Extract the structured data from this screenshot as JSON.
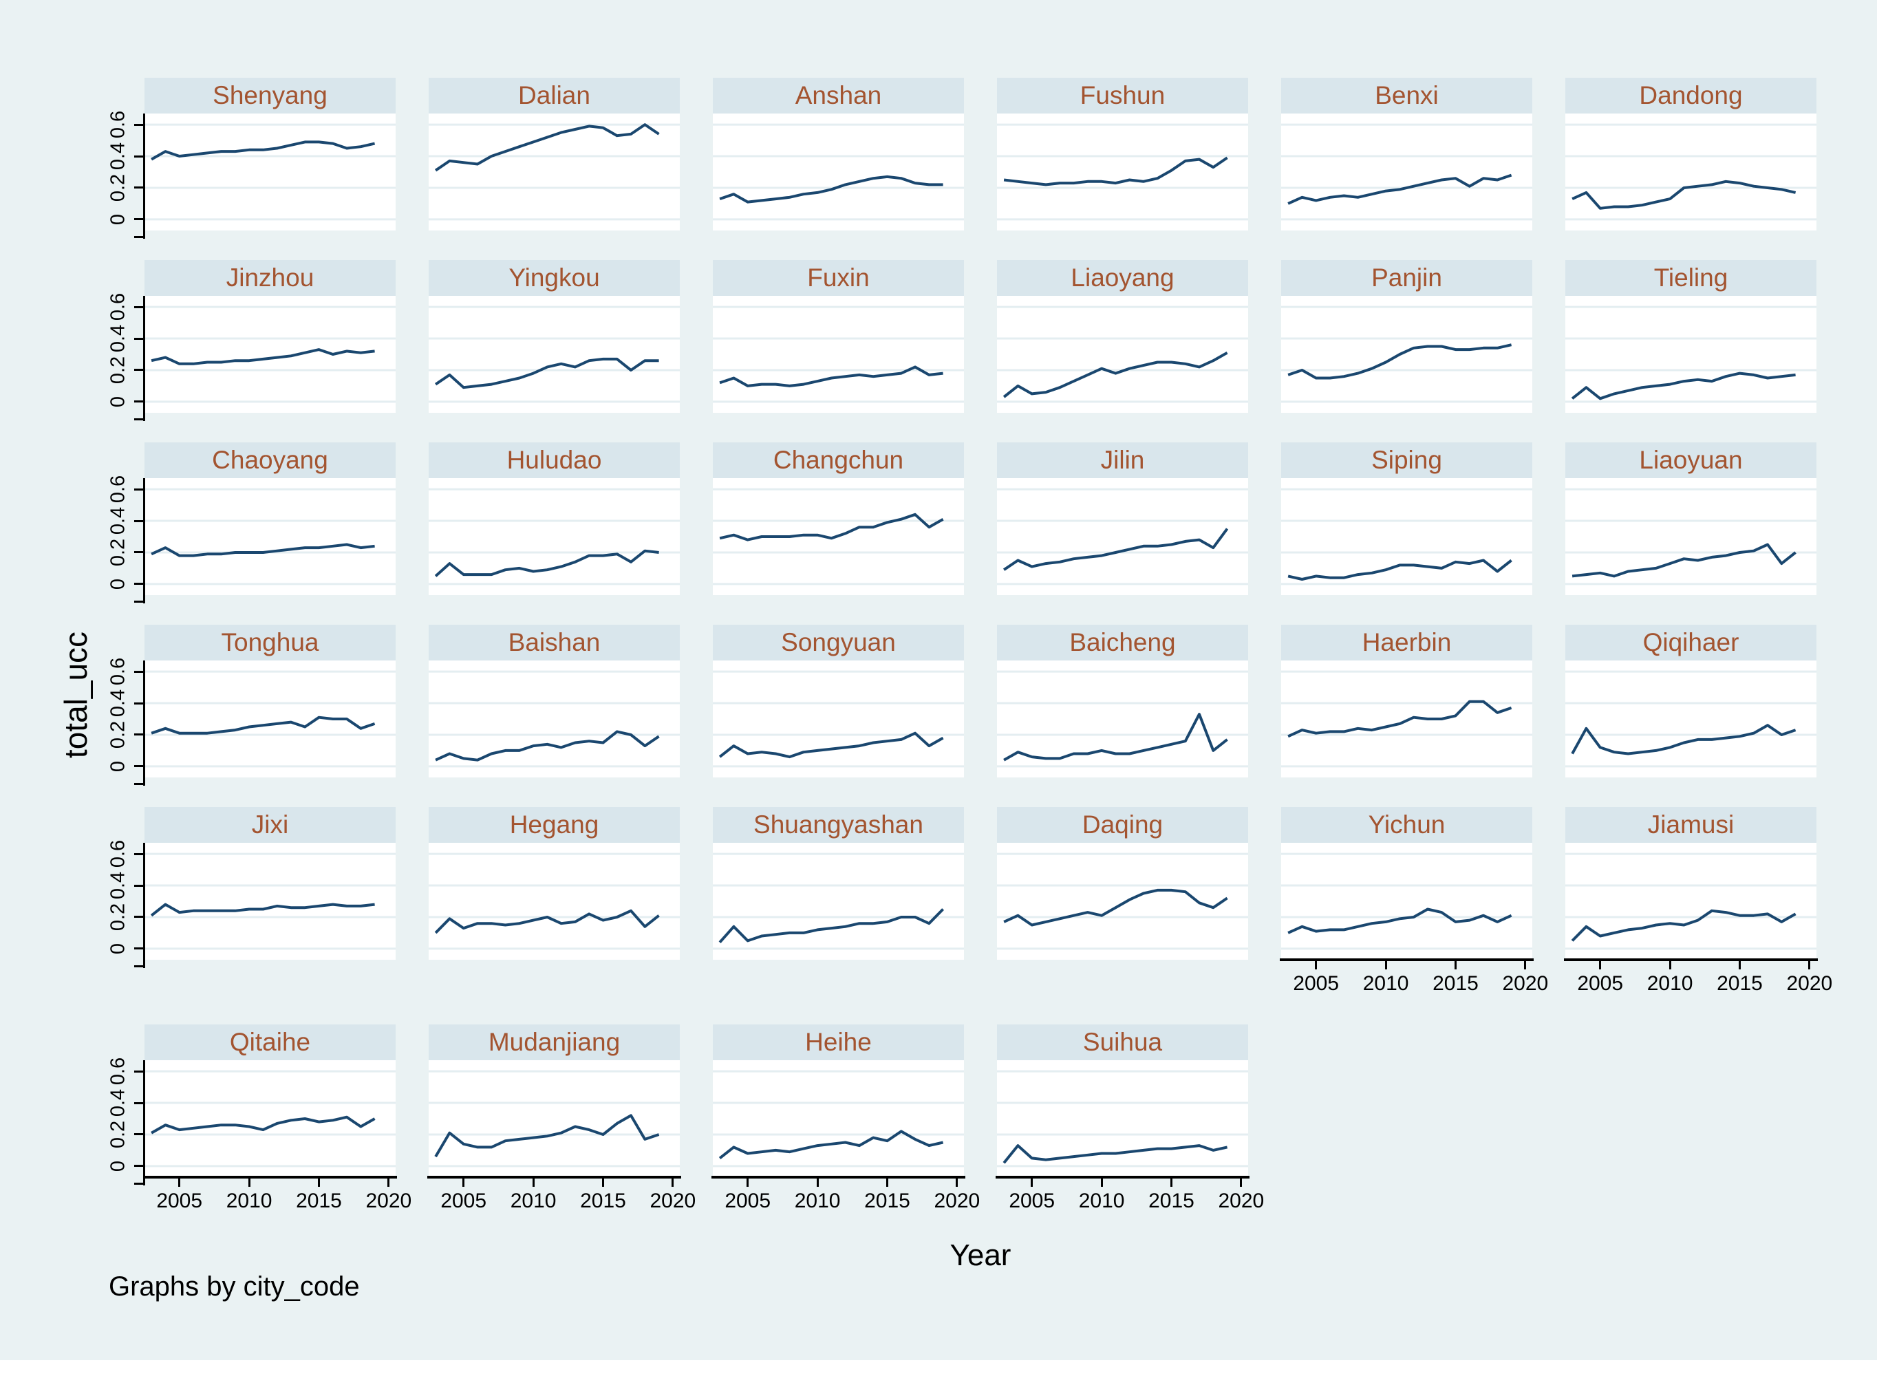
{
  "figure": {
    "ylabel": "total_ucc",
    "xlabel": "Year",
    "caption": "Graphs by city_code",
    "colors": {
      "background": "#eaf2f3",
      "title_band": "#d9e6ec",
      "title_text": "#a35430",
      "plot_background": "#ffffff",
      "gridline": "#e4eef1",
      "line": "#1a476f",
      "axis": "#000000"
    }
  },
  "chart_data": {
    "type": "line",
    "layout": "small-multiples, 6 columns, by city_code",
    "title": "",
    "xlabel": "Year",
    "ylabel": "total_ucc",
    "x": [
      2003,
      2004,
      2005,
      2006,
      2007,
      2008,
      2009,
      2010,
      2011,
      2012,
      2013,
      2014,
      2015,
      2016,
      2017,
      2018,
      2019
    ],
    "xticks": [
      2005,
      2010,
      2015,
      2020
    ],
    "xtick_labels": [
      "2005",
      "2010",
      "2015",
      "2020"
    ],
    "yticks": [
      0,
      0.2,
      0.4,
      0.6
    ],
    "ytick_labels": [
      "0",
      "0.2",
      "0.4",
      "0.6"
    ],
    "xlim": [
      2002.5,
      2020.5
    ],
    "ylim": [
      -0.07,
      0.67
    ],
    "grid": true,
    "legend_position": "none",
    "series": [
      {
        "name": "Shenyang",
        "values": [
          0.38,
          0.43,
          0.4,
          0.41,
          0.42,
          0.43,
          0.43,
          0.44,
          0.44,
          0.45,
          0.47,
          0.49,
          0.49,
          0.48,
          0.45,
          0.46,
          0.48
        ]
      },
      {
        "name": "Dalian",
        "values": [
          0.31,
          0.37,
          0.36,
          0.35,
          0.4,
          0.43,
          0.46,
          0.49,
          0.52,
          0.55,
          0.57,
          0.59,
          0.58,
          0.53,
          0.54,
          0.6,
          0.54
        ]
      },
      {
        "name": "Anshan",
        "values": [
          0.13,
          0.16,
          0.11,
          0.12,
          0.13,
          0.14,
          0.16,
          0.17,
          0.19,
          0.22,
          0.24,
          0.26,
          0.27,
          0.26,
          0.23,
          0.22,
          0.22
        ]
      },
      {
        "name": "Fushun",
        "values": [
          0.25,
          0.24,
          0.23,
          0.22,
          0.23,
          0.23,
          0.24,
          0.24,
          0.23,
          0.25,
          0.24,
          0.26,
          0.31,
          0.37,
          0.38,
          0.33,
          0.39
        ]
      },
      {
        "name": "Benxi",
        "values": [
          0.1,
          0.14,
          0.12,
          0.14,
          0.15,
          0.14,
          0.16,
          0.18,
          0.19,
          0.21,
          0.23,
          0.25,
          0.26,
          0.21,
          0.26,
          0.25,
          0.28
        ]
      },
      {
        "name": "Dandong",
        "values": [
          0.13,
          0.17,
          0.07,
          0.08,
          0.08,
          0.09,
          0.11,
          0.13,
          0.2,
          0.21,
          0.22,
          0.24,
          0.23,
          0.21,
          0.2,
          0.19,
          0.17
        ]
      },
      {
        "name": "Jinzhou",
        "values": [
          0.26,
          0.28,
          0.24,
          0.24,
          0.25,
          0.25,
          0.26,
          0.26,
          0.27,
          0.28,
          0.29,
          0.31,
          0.33,
          0.3,
          0.32,
          0.31,
          0.32
        ]
      },
      {
        "name": "Yingkou",
        "values": [
          0.11,
          0.17,
          0.09,
          0.1,
          0.11,
          0.13,
          0.15,
          0.18,
          0.22,
          0.24,
          0.22,
          0.26,
          0.27,
          0.27,
          0.2,
          0.26,
          0.26
        ]
      },
      {
        "name": "Fuxin",
        "values": [
          0.12,
          0.15,
          0.1,
          0.11,
          0.11,
          0.1,
          0.11,
          0.13,
          0.15,
          0.16,
          0.17,
          0.16,
          0.17,
          0.18,
          0.22,
          0.17,
          0.18
        ]
      },
      {
        "name": "Liaoyang",
        "values": [
          0.03,
          0.1,
          0.05,
          0.06,
          0.09,
          0.13,
          0.17,
          0.21,
          0.18,
          0.21,
          0.23,
          0.25,
          0.25,
          0.24,
          0.22,
          0.26,
          0.31
        ]
      },
      {
        "name": "Panjin",
        "values": [
          0.17,
          0.2,
          0.15,
          0.15,
          0.16,
          0.18,
          0.21,
          0.25,
          0.3,
          0.34,
          0.35,
          0.35,
          0.33,
          0.33,
          0.34,
          0.34,
          0.36
        ]
      },
      {
        "name": "Tieling",
        "values": [
          0.02,
          0.09,
          0.02,
          0.05,
          0.07,
          0.09,
          0.1,
          0.11,
          0.13,
          0.14,
          0.13,
          0.16,
          0.18,
          0.17,
          0.15,
          0.16,
          0.17
        ]
      },
      {
        "name": "Chaoyang",
        "values": [
          0.19,
          0.23,
          0.18,
          0.18,
          0.19,
          0.19,
          0.2,
          0.2,
          0.2,
          0.21,
          0.22,
          0.23,
          0.23,
          0.24,
          0.25,
          0.23,
          0.24
        ]
      },
      {
        "name": "Huludao",
        "values": [
          0.05,
          0.13,
          0.06,
          0.06,
          0.06,
          0.09,
          0.1,
          0.08,
          0.09,
          0.11,
          0.14,
          0.18,
          0.18,
          0.19,
          0.14,
          0.21,
          0.2
        ]
      },
      {
        "name": "Changchun",
        "values": [
          0.29,
          0.31,
          0.28,
          0.3,
          0.3,
          0.3,
          0.31,
          0.31,
          0.29,
          0.32,
          0.36,
          0.36,
          0.39,
          0.41,
          0.44,
          0.36,
          0.41
        ]
      },
      {
        "name": "Jilin",
        "values": [
          0.09,
          0.15,
          0.11,
          0.13,
          0.14,
          0.16,
          0.17,
          0.18,
          0.2,
          0.22,
          0.24,
          0.24,
          0.25,
          0.27,
          0.28,
          0.23,
          0.35
        ]
      },
      {
        "name": "Siping",
        "values": [
          0.05,
          0.03,
          0.05,
          0.04,
          0.04,
          0.06,
          0.07,
          0.09,
          0.12,
          0.12,
          0.11,
          0.1,
          0.14,
          0.13,
          0.15,
          0.08,
          0.15
        ]
      },
      {
        "name": "Liaoyuan",
        "values": [
          0.05,
          0.06,
          0.07,
          0.05,
          0.08,
          0.09,
          0.1,
          0.13,
          0.16,
          0.15,
          0.17,
          0.18,
          0.2,
          0.21,
          0.25,
          0.13,
          0.2
        ]
      },
      {
        "name": "Tonghua",
        "values": [
          0.21,
          0.24,
          0.21,
          0.21,
          0.21,
          0.22,
          0.23,
          0.25,
          0.26,
          0.27,
          0.28,
          0.25,
          0.31,
          0.3,
          0.3,
          0.24,
          0.27
        ]
      },
      {
        "name": "Baishan",
        "values": [
          0.04,
          0.08,
          0.05,
          0.04,
          0.08,
          0.1,
          0.1,
          0.13,
          0.14,
          0.12,
          0.15,
          0.16,
          0.15,
          0.22,
          0.2,
          0.13,
          0.19
        ]
      },
      {
        "name": "Songyuan",
        "values": [
          0.06,
          0.13,
          0.08,
          0.09,
          0.08,
          0.06,
          0.09,
          0.1,
          0.11,
          0.12,
          0.13,
          0.15,
          0.16,
          0.17,
          0.21,
          0.13,
          0.18
        ]
      },
      {
        "name": "Baicheng",
        "values": [
          0.04,
          0.09,
          0.06,
          0.05,
          0.05,
          0.08,
          0.08,
          0.1,
          0.08,
          0.08,
          0.1,
          0.12,
          0.14,
          0.16,
          0.33,
          0.1,
          0.17
        ]
      },
      {
        "name": "Haerbin",
        "values": [
          0.19,
          0.23,
          0.21,
          0.22,
          0.22,
          0.24,
          0.23,
          0.25,
          0.27,
          0.31,
          0.3,
          0.3,
          0.32,
          0.41,
          0.41,
          0.34,
          0.37
        ]
      },
      {
        "name": "Qiqihaer",
        "values": [
          0.08,
          0.24,
          0.12,
          0.09,
          0.08,
          0.09,
          0.1,
          0.12,
          0.15,
          0.17,
          0.17,
          0.18,
          0.19,
          0.21,
          0.26,
          0.2,
          0.23
        ]
      },
      {
        "name": "Jixi",
        "values": [
          0.21,
          0.28,
          0.23,
          0.24,
          0.24,
          0.24,
          0.24,
          0.25,
          0.25,
          0.27,
          0.26,
          0.26,
          0.27,
          0.28,
          0.27,
          0.27,
          0.28
        ]
      },
      {
        "name": "Hegang",
        "values": [
          0.1,
          0.19,
          0.13,
          0.16,
          0.16,
          0.15,
          0.16,
          0.18,
          0.2,
          0.16,
          0.17,
          0.22,
          0.18,
          0.2,
          0.24,
          0.14,
          0.21
        ]
      },
      {
        "name": "Shuangyashan",
        "values": [
          0.04,
          0.14,
          0.05,
          0.08,
          0.09,
          0.1,
          0.1,
          0.12,
          0.13,
          0.14,
          0.16,
          0.16,
          0.17,
          0.2,
          0.2,
          0.16,
          0.25
        ]
      },
      {
        "name": "Daqing",
        "values": [
          0.17,
          0.21,
          0.15,
          0.17,
          0.19,
          0.21,
          0.23,
          0.21,
          0.26,
          0.31,
          0.35,
          0.37,
          0.37,
          0.36,
          0.29,
          0.26,
          0.32
        ]
      },
      {
        "name": "Yichun",
        "values": [
          0.1,
          0.14,
          0.11,
          0.12,
          0.12,
          0.14,
          0.16,
          0.17,
          0.19,
          0.2,
          0.25,
          0.23,
          0.17,
          0.18,
          0.21,
          0.17,
          0.21
        ]
      },
      {
        "name": "Jiamusi",
        "values": [
          0.05,
          0.14,
          0.08,
          0.1,
          0.12,
          0.13,
          0.15,
          0.16,
          0.15,
          0.18,
          0.24,
          0.23,
          0.21,
          0.21,
          0.22,
          0.17,
          0.22
        ]
      },
      {
        "name": "Qitaihe",
        "values": [
          0.21,
          0.26,
          0.23,
          0.24,
          0.25,
          0.26,
          0.26,
          0.25,
          0.23,
          0.27,
          0.29,
          0.3,
          0.28,
          0.29,
          0.31,
          0.25,
          0.3
        ]
      },
      {
        "name": "Mudanjiang",
        "values": [
          0.06,
          0.21,
          0.14,
          0.12,
          0.12,
          0.16,
          0.17,
          0.18,
          0.19,
          0.21,
          0.25,
          0.23,
          0.2,
          0.27,
          0.32,
          0.17,
          0.2
        ]
      },
      {
        "name": "Heihe",
        "values": [
          0.05,
          0.12,
          0.08,
          0.09,
          0.1,
          0.09,
          0.11,
          0.13,
          0.14,
          0.15,
          0.13,
          0.18,
          0.16,
          0.22,
          0.17,
          0.13,
          0.15
        ]
      },
      {
        "name": "Suihua",
        "values": [
          0.02,
          0.13,
          0.05,
          0.04,
          0.05,
          0.06,
          0.07,
          0.08,
          0.08,
          0.09,
          0.1,
          0.11,
          0.11,
          0.12,
          0.13,
          0.1,
          0.12
        ]
      }
    ]
  }
}
